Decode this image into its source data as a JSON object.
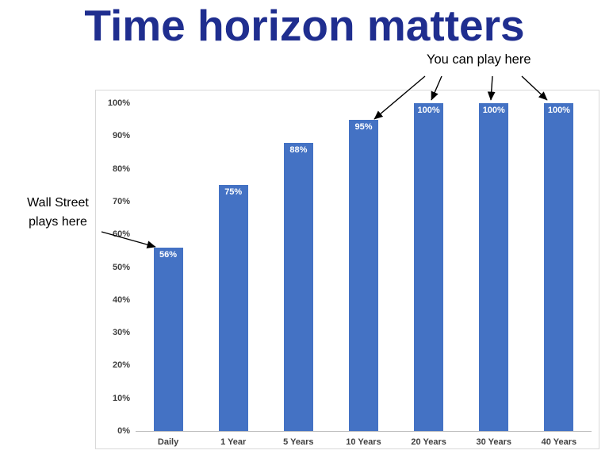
{
  "title": "Time horizon matters",
  "annotations": {
    "left_line1": "Wall Street",
    "left_line2": "plays here",
    "right": "You can play here"
  },
  "chart_data": {
    "type": "bar",
    "title": "",
    "categories": [
      "Daily",
      "1 Year",
      "5 Years",
      "10 Years",
      "20 Years",
      "30 Years",
      "40 Years"
    ],
    "values": [
      56,
      75,
      88,
      95,
      100,
      100,
      100
    ],
    "value_labels": [
      "56%",
      "75%",
      "88%",
      "95%",
      "100%",
      "100%",
      "100%"
    ],
    "xlabel": "",
    "ylabel": "",
    "ylim": [
      0,
      100
    ],
    "yticks": [
      "0%",
      "10%",
      "20%",
      "30%",
      "40%",
      "50%",
      "60%",
      "70%",
      "80%",
      "90%",
      "100%"
    ],
    "grid": false,
    "legend": "none",
    "bar_color": "#4472C4",
    "value_label_color": "#FFFFFF"
  },
  "colors": {
    "title": "#1F2E8F",
    "axis_text": "#404040",
    "annotation_text": "#000000",
    "arrow": "#000000",
    "chart_border": "#D9D9D9",
    "axis_line": "#BFBFBF"
  }
}
